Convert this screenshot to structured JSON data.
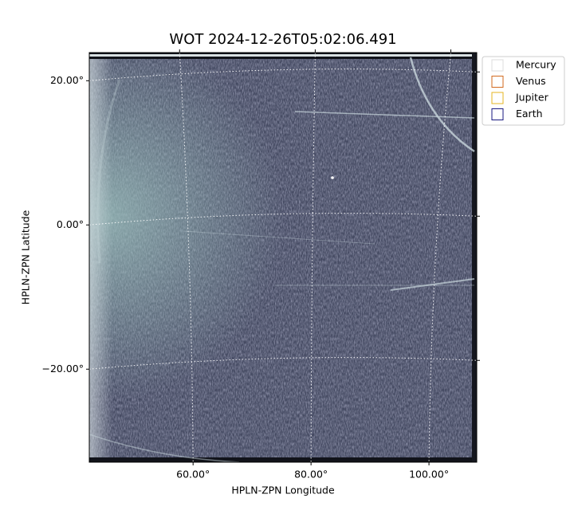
{
  "chart_data": {
    "type": "image",
    "title": "WOT 2024-12-26T05:02:06.491",
    "xlabel": "HPLN-ZPN Longitude",
    "ylabel": "HPLN-ZPN Latitude",
    "xlim": [
      42.4,
      108.1
    ],
    "ylim": [
      -32.9,
      23.9
    ],
    "xticks": [
      {
        "value": 60,
        "label": "60.00°"
      },
      {
        "value": 80,
        "label": "80.00°"
      },
      {
        "value": 100,
        "label": "100.00°"
      }
    ],
    "yticks": [
      {
        "value": -20,
        "label": "−20.00°"
      },
      {
        "value": 0,
        "label": "0.00°"
      },
      {
        "value": 20,
        "label": "20.00°"
      }
    ],
    "grid": true,
    "legend": "upper right",
    "series": [
      {
        "name": "Mercury",
        "color": "#dddddd",
        "values": []
      },
      {
        "name": "Venus",
        "color": "#d2691e",
        "values": []
      },
      {
        "name": "Jupiter",
        "color": "#e6b422",
        "values": []
      },
      {
        "name": "Earth",
        "color": "#1a1a80",
        "values": []
      }
    ]
  }
}
